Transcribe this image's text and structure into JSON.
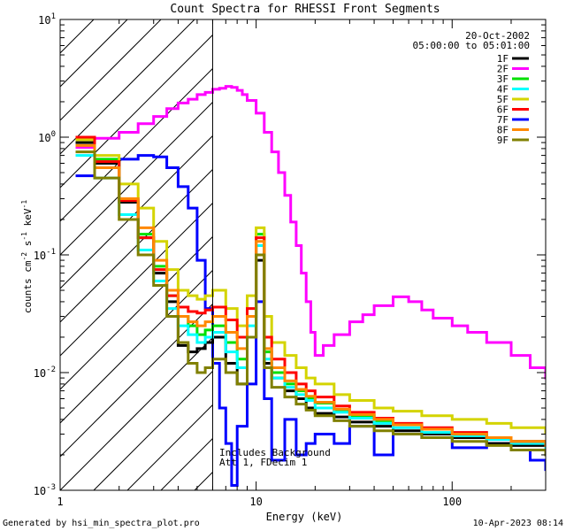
{
  "chart_data": {
    "type": "line",
    "title": "Count Spectra for RHESSI Front Segments",
    "xlabel": "Energy (keV)",
    "ylabel_main": "counts cm",
    "ylabel_parts": {
      "a": "-2",
      "b": " s",
      "c": "-1",
      "d": " keV",
      "e": "-1"
    },
    "xscale": "log",
    "yscale": "log",
    "xlim": [
      1,
      300
    ],
    "ylim": [
      0.001,
      10
    ],
    "x_ticks": [
      {
        "v": 1,
        "label": "1"
      },
      {
        "v": 10,
        "label": "10"
      },
      {
        "v": 100,
        "label": "100"
      }
    ],
    "y_ticks": [
      {
        "v": 10,
        "base": "10",
        "exp": "1"
      },
      {
        "v": 1,
        "base": "10",
        "exp": "0"
      },
      {
        "v": 0.1,
        "base": "10",
        "exp": "-1"
      },
      {
        "v": 0.01,
        "base": "10",
        "exp": "-2"
      },
      {
        "v": 0.001,
        "base": "10",
        "exp": "-3"
      }
    ],
    "hatch_region_keV": [
      1,
      6
    ],
    "date": "20-Oct-2002",
    "time_range": "05:00:00 to 05:01:00",
    "annotation_lines": [
      "Includes Background",
      "Att 1, FDecim 1"
    ],
    "legend": [
      {
        "name": "1F",
        "color": "#000000"
      },
      {
        "name": "2F",
        "color": "#ff00ff"
      },
      {
        "name": "3F",
        "color": "#00e000"
      },
      {
        "name": "4F",
        "color": "#00ffff"
      },
      {
        "name": "5F",
        "color": "#d4d400"
      },
      {
        "name": "6F",
        "color": "#ff0000"
      },
      {
        "name": "7F",
        "color": "#0000ff"
      },
      {
        "name": "8F",
        "color": "#ff8800"
      },
      {
        "name": "9F",
        "color": "#808000"
      }
    ],
    "series": [
      {
        "name": "2F",
        "x": [
          1.2,
          1.5,
          2,
          2.5,
          3,
          3.5,
          4,
          4.5,
          5,
          5.5,
          6,
          6.5,
          7,
          7.5,
          8,
          8.5,
          9,
          10,
          11,
          12,
          13,
          14,
          15,
          16,
          17,
          18,
          19,
          20,
          22,
          25,
          30,
          35,
          40,
          50,
          60,
          70,
          80,
          100,
          120,
          150,
          200,
          250,
          300
        ],
        "values": [
          0.82,
          0.98,
          1.1,
          1.3,
          1.5,
          1.75,
          1.95,
          2.1,
          2.3,
          2.4,
          2.55,
          2.6,
          2.7,
          2.65,
          2.5,
          2.3,
          2.05,
          1.6,
          1.1,
          0.75,
          0.5,
          0.32,
          0.19,
          0.12,
          0.07,
          0.04,
          0.022,
          0.014,
          0.017,
          0.021,
          0.027,
          0.031,
          0.037,
          0.044,
          0.04,
          0.034,
          0.029,
          0.025,
          0.022,
          0.018,
          0.014,
          0.011,
          0.009
        ]
      },
      {
        "name": "7F",
        "x": [
          1.2,
          1.5,
          2,
          2.5,
          3,
          3.5,
          4,
          4.5,
          5,
          5.5,
          6,
          6.5,
          7,
          7.5,
          8,
          9,
          10,
          11,
          12,
          14,
          16,
          18,
          20,
          25,
          30,
          40,
          50,
          70,
          100,
          150,
          200,
          250,
          300
        ],
        "values": [
          0.47,
          0.55,
          0.65,
          0.7,
          0.68,
          0.55,
          0.38,
          0.25,
          0.09,
          0.035,
          0.012,
          0.005,
          0.0025,
          0.0011,
          0.0035,
          0.008,
          0.04,
          0.006,
          0.0018,
          0.004,
          0.002,
          0.0025,
          0.003,
          0.0025,
          0.0035,
          0.002,
          0.003,
          0.0028,
          0.0023,
          0.0025,
          0.0022,
          0.0018,
          0.0015
        ]
      },
      {
        "name": "1F",
        "x": [
          1.2,
          1.5,
          2,
          2.5,
          3,
          3.5,
          4,
          4.5,
          5,
          5.5,
          6,
          7,
          8,
          9,
          10,
          11,
          12,
          14,
          16,
          18,
          20,
          25,
          30,
          40,
          50,
          70,
          100,
          150,
          200,
          300
        ],
        "values": [
          0.9,
          0.6,
          0.28,
          0.14,
          0.07,
          0.04,
          0.017,
          0.015,
          0.016,
          0.018,
          0.02,
          0.012,
          0.008,
          0.02,
          0.09,
          0.012,
          0.009,
          0.007,
          0.006,
          0.005,
          0.0045,
          0.0042,
          0.0038,
          0.0035,
          0.0032,
          0.003,
          0.0028,
          0.0025,
          0.0024,
          0.0023
        ]
      },
      {
        "name": "3F",
        "x": [
          1.2,
          1.5,
          2,
          2.5,
          3,
          3.5,
          4,
          4.5,
          5,
          5.5,
          6,
          7,
          8,
          9,
          10,
          11,
          12,
          14,
          16,
          18,
          20,
          25,
          30,
          40,
          50,
          70,
          100,
          150,
          200,
          300
        ],
        "values": [
          1.0,
          0.65,
          0.3,
          0.15,
          0.08,
          0.045,
          0.03,
          0.025,
          0.021,
          0.023,
          0.025,
          0.018,
          0.013,
          0.03,
          0.15,
          0.015,
          0.01,
          0.008,
          0.007,
          0.006,
          0.0055,
          0.0048,
          0.0043,
          0.0039,
          0.0036,
          0.0033,
          0.003,
          0.0028,
          0.0026,
          0.0024
        ]
      },
      {
        "name": "4F",
        "x": [
          1.2,
          1.5,
          2,
          2.5,
          3,
          3.5,
          4,
          4.5,
          5,
          5.5,
          6,
          7,
          8,
          9,
          10,
          11,
          12,
          14,
          16,
          18,
          20,
          25,
          30,
          40,
          50,
          70,
          100,
          150,
          200,
          300
        ],
        "values": [
          0.7,
          0.45,
          0.22,
          0.11,
          0.06,
          0.035,
          0.025,
          0.021,
          0.018,
          0.02,
          0.022,
          0.015,
          0.011,
          0.025,
          0.12,
          0.013,
          0.009,
          0.0075,
          0.0065,
          0.0058,
          0.005,
          0.0046,
          0.0041,
          0.0037,
          0.0034,
          0.0031,
          0.0029,
          0.0027,
          0.0025,
          0.0023
        ]
      },
      {
        "name": "5F",
        "x": [
          1.2,
          1.5,
          2,
          2.5,
          3,
          3.5,
          4,
          4.5,
          5,
          5.5,
          6,
          7,
          8,
          9,
          10,
          11,
          12,
          14,
          16,
          18,
          20,
          25,
          30,
          40,
          50,
          70,
          100,
          150,
          200,
          300
        ],
        "values": [
          0.95,
          0.7,
          0.4,
          0.25,
          0.13,
          0.075,
          0.05,
          0.045,
          0.042,
          0.045,
          0.05,
          0.035,
          0.025,
          0.045,
          0.17,
          0.03,
          0.018,
          0.014,
          0.011,
          0.009,
          0.008,
          0.0065,
          0.0058,
          0.005,
          0.0047,
          0.0043,
          0.004,
          0.0037,
          0.0034,
          0.0031
        ]
      },
      {
        "name": "6F",
        "x": [
          1.2,
          1.5,
          2,
          2.5,
          3,
          3.5,
          4,
          4.5,
          5,
          5.5,
          6,
          7,
          8,
          9,
          10,
          11,
          12,
          14,
          16,
          18,
          20,
          25,
          30,
          40,
          50,
          70,
          100,
          150,
          200,
          300
        ],
        "values": [
          1.0,
          0.62,
          0.29,
          0.14,
          0.075,
          0.045,
          0.036,
          0.033,
          0.032,
          0.034,
          0.036,
          0.028,
          0.02,
          0.035,
          0.14,
          0.02,
          0.013,
          0.01,
          0.008,
          0.007,
          0.0062,
          0.0052,
          0.0046,
          0.0041,
          0.0037,
          0.0034,
          0.0031,
          0.0028,
          0.0026,
          0.0024
        ]
      },
      {
        "name": "8F",
        "x": [
          1.2,
          1.5,
          2,
          2.5,
          3,
          3.5,
          4,
          4.5,
          5,
          5.5,
          6,
          7,
          8,
          9,
          10,
          11,
          12,
          14,
          16,
          18,
          20,
          25,
          30,
          40,
          50,
          70,
          100,
          150,
          200,
          300
        ],
        "values": [
          0.85,
          0.55,
          0.3,
          0.17,
          0.09,
          0.05,
          0.03,
          0.027,
          0.025,
          0.027,
          0.03,
          0.022,
          0.016,
          0.03,
          0.13,
          0.016,
          0.011,
          0.0085,
          0.0072,
          0.0063,
          0.0056,
          0.0049,
          0.0044,
          0.004,
          0.0036,
          0.0033,
          0.003,
          0.0028,
          0.0026,
          0.0024
        ]
      },
      {
        "name": "9F",
        "x": [
          1.2,
          1.5,
          2,
          2.5,
          3,
          3.5,
          4,
          4.5,
          5,
          5.5,
          6,
          7,
          8,
          9,
          10,
          11,
          12,
          14,
          16,
          18,
          20,
          25,
          30,
          40,
          50,
          70,
          100,
          150,
          200,
          300
        ],
        "values": [
          0.75,
          0.45,
          0.2,
          0.1,
          0.055,
          0.03,
          0.018,
          0.012,
          0.01,
          0.011,
          0.013,
          0.01,
          0.008,
          0.02,
          0.1,
          0.011,
          0.0075,
          0.0062,
          0.0054,
          0.0048,
          0.0043,
          0.0039,
          0.0035,
          0.0032,
          0.003,
          0.0028,
          0.0026,
          0.0024,
          0.0022,
          0.002
        ]
      }
    ]
  },
  "footer": {
    "generated": "Generated by hsi_min_spectra_plot.pro",
    "timestamp": "10-Apr-2023 08:14"
  }
}
